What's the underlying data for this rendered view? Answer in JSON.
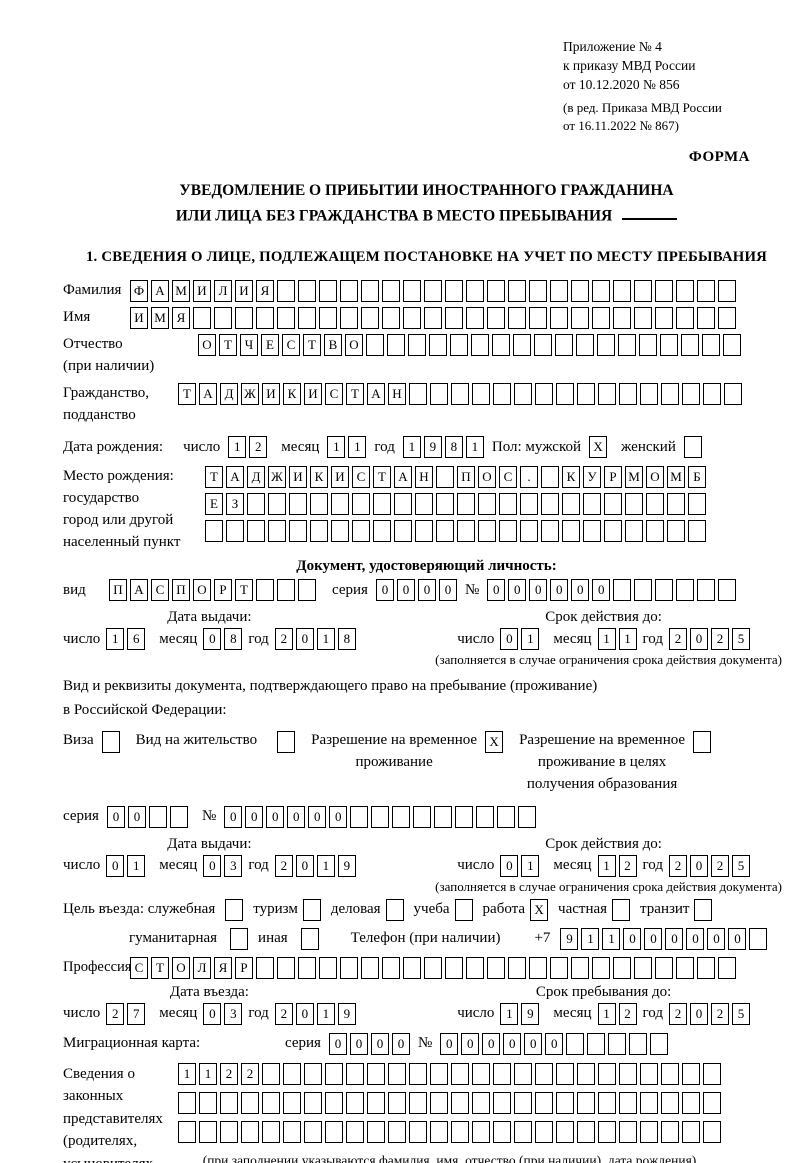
{
  "header": {
    "appendix": "Приложение № 4\nк приказу МВД России\nот 10.12.2020 № 856",
    "edition": "(в ред. Приказа МВД России\nот 16.11.2022 № 867)",
    "forma": "ФОРМА"
  },
  "title": {
    "line1": "УВЕДОМЛЕНИЕ О ПРИБЫТИИ ИНОСТРАННОГО ГРАЖДАНИНА",
    "line2": "ИЛИ ЛИЦА БЕЗ ГРАЖДАНСТВА В МЕСТО ПРЕБЫВАНИЯ"
  },
  "section1_title": "1. СВЕДЕНИЯ О ЛИЦЕ, ПОДЛЕЖАЩЕМ ПОСТАНОВКЕ НА УЧЕТ ПО МЕСТУ ПРЕБЫВАНИЯ",
  "labels": {
    "day": "число",
    "month": "месяц",
    "year": "год",
    "series": "серия",
    "number": "№",
    "issue_date": "Дата выдачи:",
    "valid_until": "Срок действия до:",
    "entry_date": "Дата въезда:",
    "stay_until": "Срок пребывания до:",
    "validity_note": "(заполняется в случае ограничения срока действия документа)",
    "phone": "Телефон (при наличии)",
    "phone_prefix": "+7"
  },
  "person": {
    "surname": {
      "label": "Фамилия",
      "boxes": {
        "value": "ФАМИЛИЯ",
        "total": 29
      }
    },
    "name": {
      "label": "Имя",
      "boxes": {
        "value": "ИМЯ",
        "total": 29
      }
    },
    "patronymic": {
      "label": "Отчество",
      "label2": "(при наличии)",
      "boxes": {
        "value": "ОТЧЕСТВО",
        "total": 26
      }
    },
    "citizenship": {
      "label": "Гражданство,",
      "label2": "подданство",
      "boxes": {
        "value": "ТАДЖИКИСТАН",
        "total": 27
      }
    },
    "birthdate": {
      "label": "Дата рождения:",
      "day": {
        "value": "12",
        "total": 2
      },
      "month": {
        "value": "11",
        "total": 2
      },
      "year": {
        "value": "1981",
        "total": 4
      }
    },
    "sex": {
      "label": "Пол: мужской",
      "male_box": {
        "value": "X",
        "total": 1
      },
      "female_label": "женский",
      "female_box": {
        "value": "",
        "total": 1
      }
    },
    "birthplace": {
      "label": "Место рождения:\nгосударство\nгород или другой\nнаселенный пункт",
      "row1": {
        "value": "ТАДЖИКИСТАН ПОС. КУРМОМБ",
        "total": 24
      },
      "row2": {
        "value": "ЕЗ",
        "total": 24
      },
      "row3": {
        "value": "",
        "total": 24
      }
    }
  },
  "identity_doc": {
    "title": "Документ, удостоверяющий личность:",
    "kind_label": "вид",
    "kind": {
      "value": "ПАСПОРТ",
      "total": 10
    },
    "series": {
      "value": "0000",
      "total": 4
    },
    "number": {
      "value": "000000",
      "total": 12
    },
    "issue": {
      "day": {
        "value": "16",
        "total": 2
      },
      "month": {
        "value": "08",
        "total": 2
      },
      "year": {
        "value": "2018",
        "total": 4
      }
    },
    "valid": {
      "day": {
        "value": "01",
        "total": 2
      },
      "month": {
        "value": "11",
        "total": 2
      },
      "year": {
        "value": "2025",
        "total": 4
      }
    }
  },
  "residence_doc": {
    "intro": "Вид и реквизиты документа, подтверждающего право на пребывание (проживание)\nв Российской Федерации:",
    "visa": {
      "label": "Виза",
      "box": {
        "value": "",
        "total": 1
      }
    },
    "vnz": {
      "label": "Вид на жительство",
      "box": {
        "value": "",
        "total": 1
      }
    },
    "rvp": {
      "label": "Разрешение на временное\nпроживание",
      "box": {
        "value": "X",
        "total": 1
      }
    },
    "rvp_edu": {
      "label": "Разрешение на временное\nпроживание в целях\nполучения образования",
      "box": {
        "value": "",
        "total": 1
      }
    },
    "series": {
      "value": "00",
      "total": 4
    },
    "number": {
      "value": "000000",
      "total": 15
    },
    "issue": {
      "day": {
        "value": "01",
        "total": 2
      },
      "month": {
        "value": "03",
        "total": 2
      },
      "year": {
        "value": "2019",
        "total": 4
      }
    },
    "valid": {
      "day": {
        "value": "01",
        "total": 2
      },
      "month": {
        "value": "12",
        "total": 2
      },
      "year": {
        "value": "2025",
        "total": 4
      }
    }
  },
  "purpose": {
    "label": "Цель въезда: служебная",
    "business_box": {
      "value": "",
      "total": 1
    },
    "tourism": "туризм",
    "tourism_box": {
      "value": "",
      "total": 1
    },
    "delovaya": "деловая",
    "delovaya_box": {
      "value": "",
      "total": 1
    },
    "study": "учеба",
    "study_box": {
      "value": "",
      "total": 1
    },
    "work": "работа",
    "work_box": {
      "value": "X",
      "total": 1
    },
    "private": "частная",
    "private_box": {
      "value": "",
      "total": 1
    },
    "transit": "транзит",
    "transit_box": {
      "value": "",
      "total": 1
    },
    "humanitarian": "гуманитарная",
    "humanitarian_box": {
      "value": "",
      "total": 1
    },
    "other": "иная",
    "other_box": {
      "value": "",
      "total": 1
    },
    "phone_digits": {
      "value": "911000000",
      "total": 10
    }
  },
  "profession": {
    "label": "Профессия",
    "boxes": {
      "value": "СТОЛЯР",
      "total": 29
    }
  },
  "entry": {
    "date": {
      "day": {
        "value": "27",
        "total": 2
      },
      "month": {
        "value": "03",
        "total": 2
      },
      "year": {
        "value": "2019",
        "total": 4
      }
    },
    "stay": {
      "day": {
        "value": "19",
        "total": 2
      },
      "month": {
        "value": "12",
        "total": 2
      },
      "year": {
        "value": "2025",
        "total": 4
      }
    }
  },
  "migration_card": {
    "label": "Миграционная карта:",
    "series": {
      "value": "0000",
      "total": 4
    },
    "number": {
      "value": "000000",
      "total": 11
    }
  },
  "legal_reps": {
    "label": "Сведения о\nзаконных\nпредставителях\n(родителях,\nусыновителях,\nпопечителях)",
    "row1": {
      "value": "1122",
      "total": 26
    },
    "row2": {
      "value": "",
      "total": 26
    },
    "row3": {
      "value": "",
      "total": 26
    },
    "footnote": "(при заполнении указываются фамилия, имя, отчество (при наличии), дата рождения)"
  }
}
